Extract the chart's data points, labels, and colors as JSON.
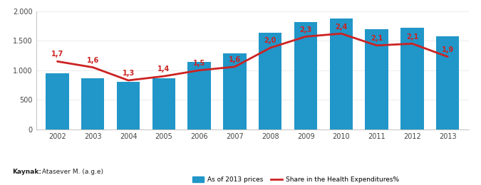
{
  "years": [
    2002,
    2003,
    2004,
    2005,
    2006,
    2007,
    2008,
    2009,
    2010,
    2011,
    2012,
    2013
  ],
  "bar_values": [
    950,
    865,
    805,
    865,
    1145,
    1285,
    1635,
    1810,
    1870,
    1690,
    1715,
    1575
  ],
  "line_values": [
    1.7,
    1.6,
    1.3,
    1.4,
    1.5,
    1.6,
    2.0,
    2.3,
    2.4,
    2.1,
    2.1,
    1.9
  ],
  "line_plot_values": [
    1150,
    1050,
    830,
    900,
    1000,
    1060,
    1380,
    1570,
    1620,
    1420,
    1450,
    1230
  ],
  "bar_color": "#2196c8",
  "line_color": "#cc2222",
  "ylim": [
    0,
    2000
  ],
  "yticks": [
    0,
    500,
    1000,
    1500,
    2000
  ],
  "ytick_labels": [
    "0",
    "500",
    "1.000",
    "1.500",
    "2.000"
  ],
  "source_bold": "Kaynak:",
  "source_normal": " Atasever M. (a.g.e)",
  "legend_bar": "As of 2013 prices",
  "legend_line": "Share in the Health Expenditures%",
  "background_color": "#ffffff"
}
